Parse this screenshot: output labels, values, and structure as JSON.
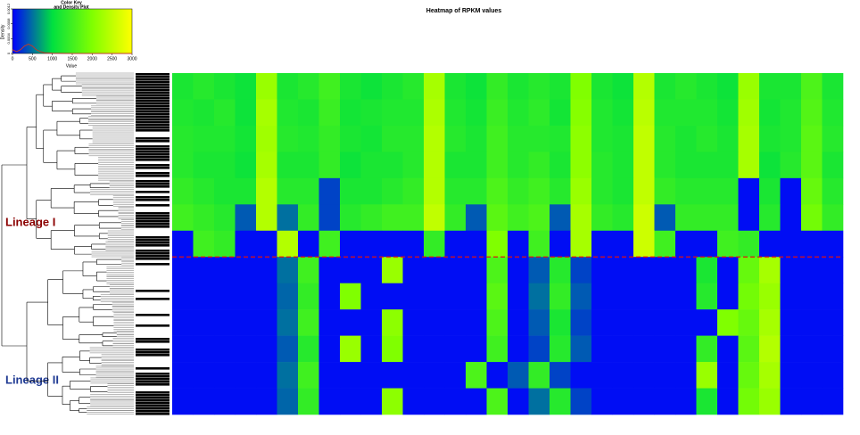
{
  "chart_data": [
    {
      "type": "heatmap",
      "title": "Heatmap of RPKM values",
      "colors": [
        "#0000ff",
        "#00e040",
        "#80ff00",
        "#ffff00"
      ],
      "annotations": [
        "Lineage I",
        "Lineage II"
      ],
      "z": [
        [
          1200,
          1300,
          1200,
          1100,
          2200,
          1200,
          1300,
          1500,
          1200,
          1100,
          1200,
          1300,
          2300,
          1200,
          1100,
          1400,
          1200,
          1300,
          1200,
          2000,
          1200,
          1100,
          2400,
          1200,
          1300,
          1200,
          1100,
          2200,
          1200,
          1200,
          1600,
          1200
        ],
        [
          1250,
          1200,
          1300,
          1100,
          2300,
          1250,
          1200,
          1450,
          1150,
          1200,
          1250,
          1250,
          2350,
          1250,
          1150,
          1450,
          1250,
          1350,
          1150,
          2050,
          1250,
          1150,
          2450,
          1250,
          1250,
          1250,
          1150,
          2250,
          1150,
          1250,
          1650,
          1250
        ],
        [
          1300,
          1250,
          1250,
          1150,
          2250,
          1300,
          1250,
          1400,
          1200,
          1150,
          1300,
          1300,
          2400,
          1300,
          1200,
          1500,
          1300,
          1300,
          1250,
          2100,
          1250,
          1200,
          2500,
          1300,
          1200,
          1300,
          1200,
          2300,
          1200,
          1250,
          1700,
          1300
        ],
        [
          1300,
          1200,
          1200,
          1100,
          2300,
          1200,
          1200,
          1400,
          1100,
          1200,
          1200,
          1300,
          2400,
          1200,
          1200,
          1500,
          1300,
          1400,
          1200,
          2100,
          1300,
          1200,
          2500,
          1300,
          1200,
          1200,
          1200,
          2300,
          1100,
          1300,
          1700,
          1200
        ],
        [
          1400,
          1300,
          1200,
          1200,
          2400,
          1300,
          1300,
          300,
          1200,
          1200,
          1300,
          1400,
          2400,
          1300,
          1300,
          1600,
          1400,
          1500,
          1300,
          2200,
          1300,
          1200,
          2500,
          1400,
          1300,
          1300,
          1300,
          60,
          1200,
          60,
          1800,
          1300
        ],
        [
          1500,
          1400,
          1300,
          400,
          2400,
          500,
          1400,
          300,
          1300,
          1400,
          1500,
          1500,
          2500,
          1400,
          400,
          1700,
          1500,
          1600,
          400,
          2300,
          1400,
          1300,
          2600,
          400,
          1400,
          1400,
          1400,
          60,
          1300,
          60,
          1900,
          1400
        ],
        [
          60,
          1500,
          1400,
          60,
          60,
          2400,
          60,
          1500,
          60,
          60,
          60,
          60,
          1400,
          60,
          60,
          2000,
          60,
          1500,
          60,
          2300,
          60,
          60,
          2600,
          1500,
          60,
          60,
          1500,
          1400,
          60,
          60,
          60,
          60
        ],
        [
          60,
          60,
          60,
          60,
          60,
          500,
          1500,
          60,
          60,
          60,
          2200,
          60,
          60,
          60,
          60,
          1600,
          60,
          400,
          1300,
          300,
          60,
          60,
          60,
          60,
          60,
          1200,
          60,
          1800,
          2300,
          60,
          60,
          60
        ],
        [
          60,
          60,
          60,
          60,
          60,
          450,
          1400,
          60,
          2000,
          60,
          60,
          60,
          60,
          60,
          60,
          1700,
          60,
          500,
          1400,
          400,
          60,
          60,
          60,
          60,
          60,
          1300,
          60,
          1900,
          2200,
          60,
          60,
          60
        ],
        [
          60,
          60,
          60,
          60,
          60,
          500,
          1500,
          60,
          60,
          60,
          2100,
          60,
          60,
          60,
          60,
          1600,
          60,
          400,
          1200,
          300,
          60,
          60,
          60,
          60,
          60,
          60,
          2000,
          1800,
          2300,
          60,
          60,
          60
        ],
        [
          60,
          60,
          60,
          60,
          60,
          400,
          1300,
          60,
          2200,
          60,
          2000,
          60,
          60,
          60,
          60,
          1500,
          60,
          300,
          1300,
          400,
          60,
          60,
          60,
          60,
          60,
          1400,
          60,
          1700,
          2400,
          60,
          60,
          60
        ],
        [
          60,
          60,
          60,
          60,
          60,
          500,
          1500,
          60,
          60,
          60,
          60,
          60,
          60,
          60,
          1600,
          60,
          400,
          1400,
          300,
          60,
          60,
          60,
          60,
          60,
          60,
          2200,
          60,
          1800,
          2300,
          60,
          60,
          60
        ],
        [
          60,
          60,
          60,
          60,
          60,
          450,
          1400,
          60,
          60,
          60,
          2100,
          60,
          60,
          60,
          60,
          1600,
          60,
          500,
          1300,
          300,
          60,
          60,
          60,
          60,
          60,
          1200,
          60,
          1900,
          2200,
          60,
          60,
          60
        ]
      ]
    },
    {
      "type": "line",
      "title": [
        "Color Key",
        "and Density Plot"
      ],
      "x_label": "Value",
      "y_label": "Density",
      "color": "#c0392b",
      "xlim": [
        0,
        3000
      ],
      "xticks": [
        0,
        500,
        1000,
        1500,
        2000,
        2500,
        3000
      ],
      "ylim": [
        0,
        0.0012
      ],
      "yticks": [
        0,
        0.0004,
        0.0008,
        0.0012
      ],
      "x": [
        0,
        100,
        200,
        300,
        400,
        500,
        600,
        700,
        800,
        1000,
        1500,
        3000
      ],
      "values": [
        0.0001,
        5e-05,
        0.0001,
        0.0002,
        0.00025,
        0.0002,
        0.0001,
        5e-05,
        2e-05,
        1e-05,
        0,
        0
      ]
    }
  ]
}
